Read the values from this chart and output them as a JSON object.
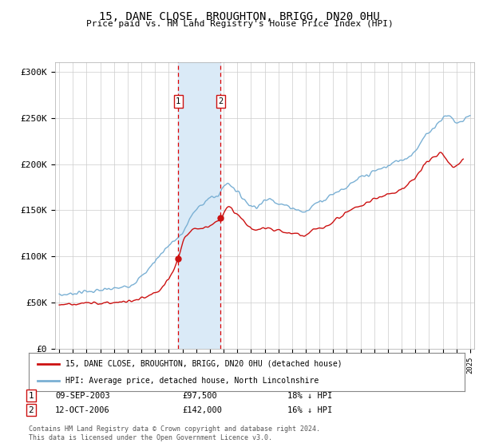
{
  "title": "15, DANE CLOSE, BROUGHTON, BRIGG, DN20 0HU",
  "subtitle": "Price paid vs. HM Land Registry's House Price Index (HPI)",
  "ylabel_ticks": [
    "£0",
    "£50K",
    "£100K",
    "£150K",
    "£200K",
    "£250K",
    "£300K"
  ],
  "ylim": [
    0,
    310000
  ],
  "yticks": [
    0,
    50000,
    100000,
    150000,
    200000,
    250000,
    300000
  ],
  "hpi_color": "#7ab0d4",
  "price_color": "#cc1111",
  "sale1_year": 2003.69,
  "sale1_price": 97500,
  "sale2_year": 2006.79,
  "sale2_price": 142000,
  "legend_line1": "15, DANE CLOSE, BROUGHTON, BRIGG, DN20 0HU (detached house)",
  "legend_line2": "HPI: Average price, detached house, North Lincolnshire",
  "footnote": "Contains HM Land Registry data © Crown copyright and database right 2024.\nThis data is licensed under the Open Government Licence v3.0.",
  "background_color": "#ffffff",
  "grid_color": "#cccccc",
  "shading_color": "#daeaf7"
}
